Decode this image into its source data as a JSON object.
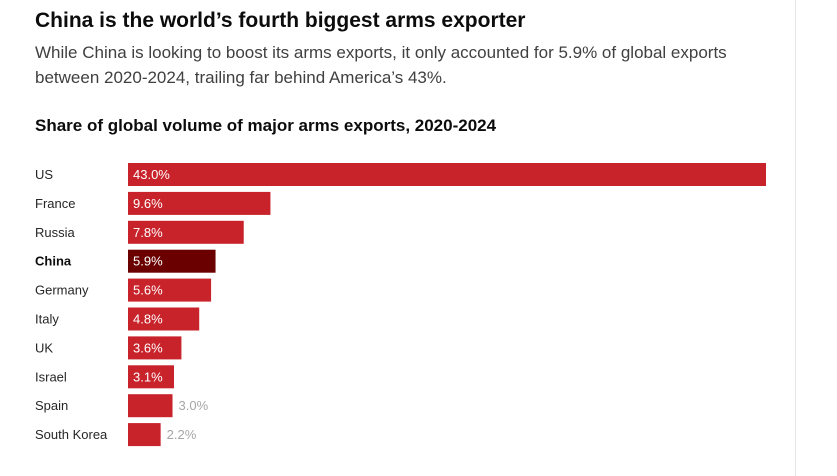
{
  "title": "China is the world’s fourth biggest arms exporter",
  "subtitle": "While China is looking to boost its arms exports, it only accounted for 5.9% of global exports between 2020-2024, trailing far behind America’s 43%.",
  "chart_data": {
    "type": "bar",
    "orientation": "horizontal",
    "title": "Share of global volume of major arms exports, 2020-2024",
    "categories": [
      "US",
      "France",
      "Russia",
      "China",
      "Germany",
      "Italy",
      "UK",
      "Israel",
      "Spain",
      "South Korea"
    ],
    "values": [
      43.0,
      9.6,
      7.8,
      5.9,
      5.6,
      4.8,
      3.6,
      3.1,
      3.0,
      2.2
    ],
    "value_labels": [
      "43.0%",
      "9.6%",
      "7.8%",
      "5.9%",
      "5.6%",
      "4.8%",
      "3.6%",
      "3.1%",
      "3.0%",
      "2.2%"
    ],
    "highlight": "China",
    "xlim": [
      0,
      43.0
    ],
    "grid": false,
    "colors": {
      "bar": "#c8222a",
      "highlight": "#6b0000"
    }
  }
}
